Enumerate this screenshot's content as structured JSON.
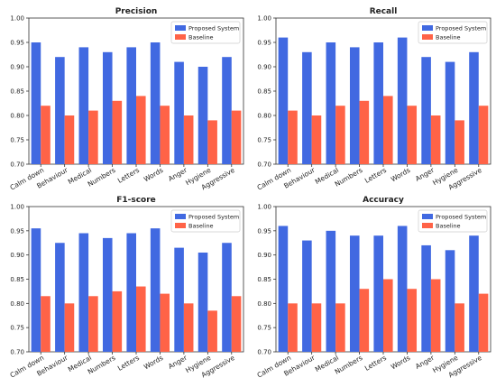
{
  "chart_data": [
    {
      "type": "bar",
      "title": "Precision",
      "xlabel": "",
      "ylabel": "",
      "categories": [
        "Calm down",
        "Behaviour",
        "Medical",
        "Numbers",
        "Letters",
        "Words",
        "Anger",
        "Hygiene",
        "Aggressive"
      ],
      "series": [
        {
          "name": "Proposed System",
          "values": [
            0.95,
            0.92,
            0.94,
            0.93,
            0.94,
            0.95,
            0.91,
            0.9,
            0.92
          ]
        },
        {
          "name": "Baseline",
          "values": [
            0.82,
            0.8,
            0.81,
            0.83,
            0.84,
            0.82,
            0.8,
            0.79,
            0.81
          ]
        }
      ],
      "ylim": [
        0.7,
        1.0
      ],
      "yticks": [
        "0.70",
        "0.75",
        "0.80",
        "0.85",
        "0.90",
        "0.95",
        "1.00"
      ],
      "grid": false,
      "legend": "top-right"
    },
    {
      "type": "bar",
      "title": "Recall",
      "xlabel": "",
      "ylabel": "",
      "categories": [
        "Calm down",
        "Behaviour",
        "Medical",
        "Numbers",
        "Letters",
        "Words",
        "Anger",
        "Hygiene",
        "Aggressive"
      ],
      "series": [
        {
          "name": "Proposed System",
          "values": [
            0.96,
            0.93,
            0.95,
            0.94,
            0.95,
            0.96,
            0.92,
            0.91,
            0.93
          ]
        },
        {
          "name": "Baseline",
          "values": [
            0.81,
            0.8,
            0.82,
            0.83,
            0.84,
            0.82,
            0.8,
            0.79,
            0.82
          ]
        }
      ],
      "ylim": [
        0.7,
        1.0
      ],
      "yticks": [
        "0.70",
        "0.75",
        "0.80",
        "0.85",
        "0.90",
        "0.95",
        "1.00"
      ],
      "grid": false,
      "legend": "top-right"
    },
    {
      "type": "bar",
      "title": "F1-score",
      "xlabel": "",
      "ylabel": "",
      "categories": [
        "Calm down",
        "Behaviour",
        "Medical",
        "Numbers",
        "Letters",
        "Words",
        "Anger",
        "Hygiene",
        "Aggressive"
      ],
      "series": [
        {
          "name": "Proposed System",
          "values": [
            0.955,
            0.925,
            0.945,
            0.935,
            0.945,
            0.955,
            0.915,
            0.905,
            0.925
          ]
        },
        {
          "name": "Baseline",
          "values": [
            0.815,
            0.8,
            0.815,
            0.825,
            0.835,
            0.82,
            0.8,
            0.785,
            0.815
          ]
        }
      ],
      "ylim": [
        0.7,
        1.0
      ],
      "yticks": [
        "0.70",
        "0.75",
        "0.80",
        "0.85",
        "0.90",
        "0.95",
        "1.00"
      ],
      "grid": false,
      "legend": "top-right"
    },
    {
      "type": "bar",
      "title": "Accuracy",
      "xlabel": "",
      "ylabel": "",
      "categories": [
        "Calm down",
        "Behaviour",
        "Medical",
        "Numbers",
        "Letters",
        "Words",
        "Anger",
        "Hygiene",
        "Aggressive"
      ],
      "series": [
        {
          "name": "Proposed System",
          "values": [
            0.96,
            0.93,
            0.95,
            0.94,
            0.94,
            0.96,
            0.92,
            0.91,
            0.94
          ]
        },
        {
          "name": "Baseline",
          "values": [
            0.8,
            0.8,
            0.8,
            0.83,
            0.85,
            0.83,
            0.85,
            0.8,
            0.82
          ]
        }
      ],
      "ylim": [
        0.7,
        1.0
      ],
      "yticks": [
        "0.70",
        "0.75",
        "0.80",
        "0.85",
        "0.90",
        "0.95",
        "1.00"
      ],
      "grid": false,
      "legend": "top-right"
    }
  ],
  "colors": {
    "proposed": "#4169E1",
    "baseline": "#FF6347",
    "axis": "#333333",
    "text": "#222222"
  }
}
